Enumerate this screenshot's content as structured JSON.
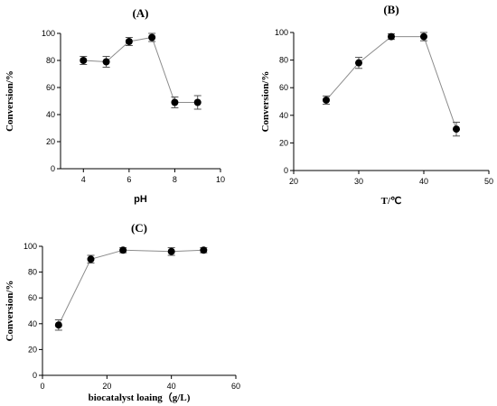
{
  "chart_data": [
    {
      "id": "A",
      "type": "scatter",
      "title": "(A)",
      "xlabel": "pH",
      "ylabel": "Conversion/%",
      "xlim": [
        3,
        10
      ],
      "ylim": [
        0,
        100
      ],
      "xticks": [
        4,
        6,
        8,
        10
      ],
      "yticks": [
        0,
        20,
        40,
        60,
        80,
        100
      ],
      "series": [
        {
          "x": [
            4,
            5,
            6,
            7,
            8,
            9
          ],
          "y": [
            80,
            79,
            94,
            97,
            49,
            49
          ],
          "err": [
            3,
            4,
            3,
            3,
            4,
            5
          ]
        }
      ],
      "grid": false,
      "markers": "filled-circle",
      "connected": true
    },
    {
      "id": "B",
      "type": "scatter",
      "title": "(B)",
      "xlabel": "T/℃",
      "ylabel": "Conversion/%",
      "xlim": [
        20,
        50
      ],
      "ylim": [
        0,
        100
      ],
      "xticks": [
        20,
        30,
        40,
        50
      ],
      "yticks": [
        0,
        20,
        40,
        60,
        80,
        100
      ],
      "series": [
        {
          "x": [
            25,
            30,
            35,
            40,
            45
          ],
          "y": [
            51,
            78,
            97,
            97,
            30
          ],
          "err": [
            3,
            4,
            2,
            3,
            5
          ]
        }
      ],
      "grid": false,
      "markers": "filled-circle",
      "connected": true
    },
    {
      "id": "C",
      "type": "scatter",
      "title": "(C)",
      "xlabel": "biocatalyst loaing（g/L)",
      "ylabel": "Conversion/%",
      "xlim": [
        0,
        60
      ],
      "ylim": [
        0,
        100
      ],
      "xticks": [
        0,
        20,
        40,
        60
      ],
      "yticks": [
        0,
        20,
        40,
        60,
        80,
        100
      ],
      "series": [
        {
          "x": [
            5,
            15,
            25,
            40,
            50
          ],
          "y": [
            39,
            90,
            97,
            96,
            97
          ],
          "err": [
            4,
            3,
            2,
            3,
            2
          ]
        }
      ],
      "grid": false,
      "markers": "filled-circle",
      "connected": true
    }
  ]
}
